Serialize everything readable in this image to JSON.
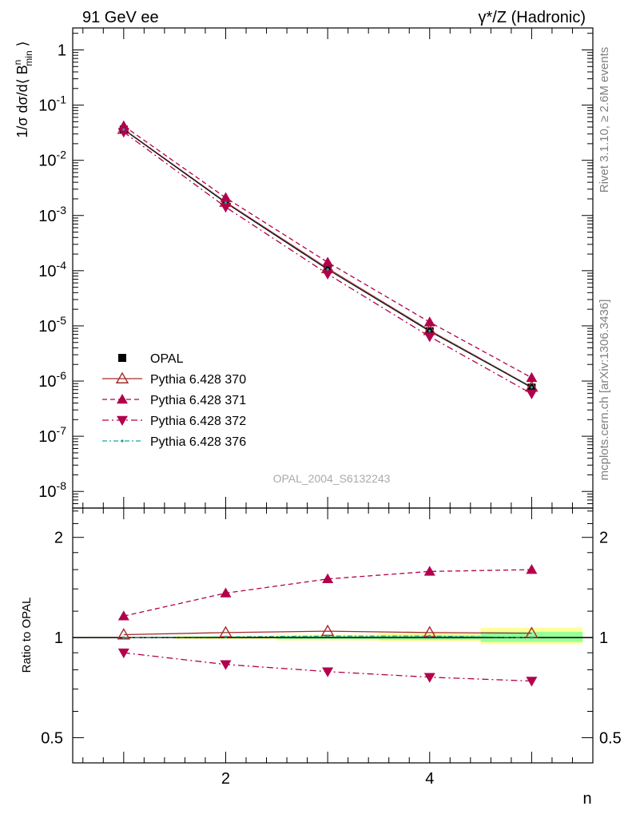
{
  "header": {
    "left": "91 GeV ee",
    "right": "γ*/Z (Hadronic)"
  },
  "side": {
    "rivet": "Rivet 3.1.10, ≥ 2.6M events",
    "mcplots": "mcplots.cern.ch [arXiv:1306.3436]"
  },
  "analysis_id": "OPAL_2004_S6132243",
  "chart_data": [
    {
      "type": "line",
      "panel": "main",
      "ylabel": "1/σ dσ/d⟨ B^n_min ⟩",
      "yscale": "log",
      "xlim": [
        0.5,
        5.6
      ],
      "ylim": [
        5e-09,
        2.5
      ],
      "y_ticks": [
        "1",
        "10^-1",
        "10^-2",
        "10^-3",
        "10^-4",
        "10^-5",
        "10^-6",
        "10^-7",
        "10^-8"
      ],
      "x": [
        1,
        2,
        3,
        4,
        5
      ],
      "series": [
        {
          "name": "OPAL",
          "style": "data",
          "color": "#000000",
          "values": [
            0.036,
            0.0017,
            0.000105,
            8e-06,
            7.6e-07
          ]
        },
        {
          "name": "Pythia 6.428 370",
          "style": "solid",
          "marker": "open-triangle-up",
          "color": "#a52a2a",
          "values": [
            0.0367,
            0.00175,
            0.00011,
            8.3e-06,
            7.8e-07
          ]
        },
        {
          "name": "Pythia 6.428 371",
          "style": "dashed",
          "marker": "filled-triangle-up",
          "color": "#b2004c",
          "values": [
            0.042,
            0.0021,
            0.000142,
            1.17e-05,
            1.15e-06
          ]
        },
        {
          "name": "Pythia 6.428 372",
          "style": "dashdot",
          "marker": "filled-triangle-down",
          "color": "#b2004c",
          "values": [
            0.0325,
            0.00142,
            8.7e-05,
            6.4e-06,
            5.9e-07
          ]
        },
        {
          "name": "Pythia 6.428 376",
          "style": "dashdot-teal",
          "marker": "dot",
          "color": "#1aa39a",
          "values": [
            0.0362,
            0.00171,
            0.000106,
            8.1e-06,
            7.7e-07
          ]
        }
      ]
    },
    {
      "type": "line",
      "panel": "ratio",
      "ylabel": "Ratio to OPAL",
      "xlabel": "n",
      "yscale": "log",
      "ylim": [
        0.42,
        2.45
      ],
      "y_ticks": [
        "0.5",
        "1",
        "2"
      ],
      "x_ticks": [
        "2",
        "4"
      ],
      "x": [
        1,
        2,
        3,
        4,
        5
      ],
      "band": {
        "x_edges": [
          0.5,
          1.5,
          2.5,
          3.5,
          4.5,
          5.5
        ],
        "inner": [
          [
            0.997,
            1.003
          ],
          [
            0.995,
            1.005
          ],
          [
            0.99,
            1.01
          ],
          [
            0.985,
            1.015
          ],
          [
            0.97,
            1.04
          ]
        ],
        "outer": [
          [
            0.995,
            1.005
          ],
          [
            0.99,
            1.01
          ],
          [
            0.98,
            1.02
          ],
          [
            0.975,
            1.03
          ],
          [
            0.955,
            1.07
          ]
        ]
      },
      "series": [
        {
          "name": "Pythia 6.428 370",
          "values": [
            1.02,
            1.035,
            1.045,
            1.035,
            1.03
          ]
        },
        {
          "name": "Pythia 6.428 371",
          "values": [
            1.16,
            1.36,
            1.5,
            1.58,
            1.6
          ]
        },
        {
          "name": "Pythia 6.428 372",
          "values": [
            0.9,
            0.83,
            0.79,
            0.76,
            0.74
          ]
        },
        {
          "name": "Pythia 6.428 376",
          "values": [
            1.0,
            1.005,
            1.01,
            1.01,
            1.0
          ]
        }
      ]
    }
  ]
}
